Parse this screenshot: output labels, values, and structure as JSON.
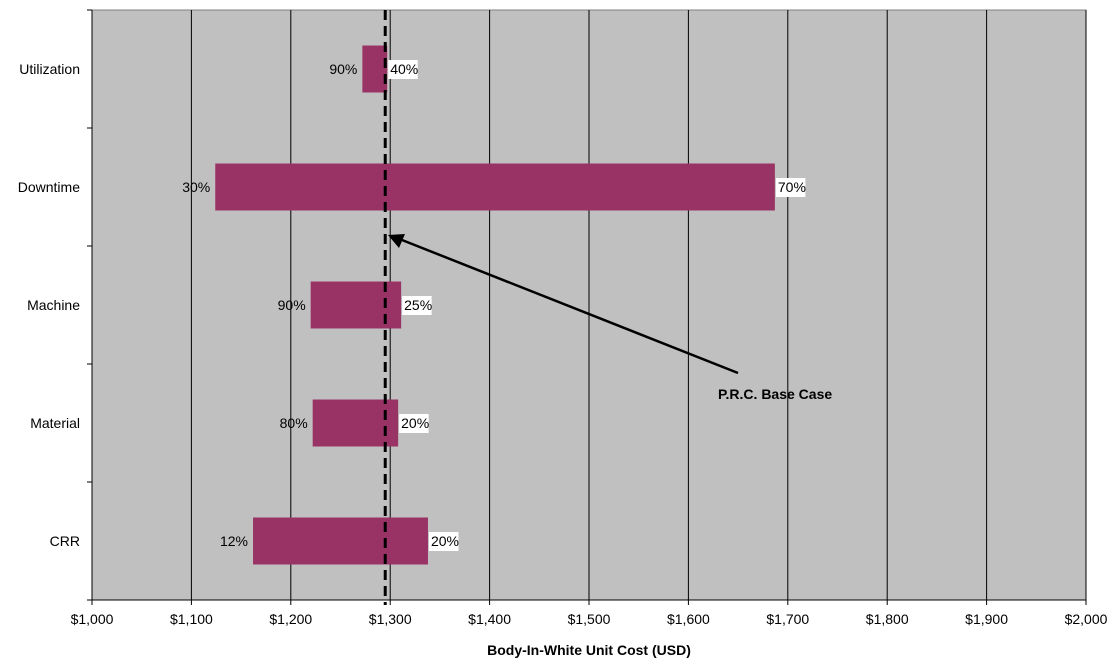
{
  "chart_data": {
    "type": "bar",
    "orientation": "horizontal",
    "subtype": "tornado",
    "title": "",
    "xlabel": "Body-In-White Unit Cost (USD)",
    "ylabel": "",
    "xlim": [
      1000,
      2000
    ],
    "x_ticks": [
      1000,
      1100,
      1200,
      1300,
      1400,
      1500,
      1600,
      1700,
      1800,
      1900,
      2000
    ],
    "x_tick_labels": [
      "$1,000",
      "$1,100",
      "$1,200",
      "$1,300",
      "$1,400",
      "$1,500",
      "$1,600",
      "$1,700",
      "$1,800",
      "$1,900",
      "$2,000"
    ],
    "grid": "vertical",
    "legend": "none",
    "base_case": {
      "value": 1295,
      "label": "P.R.C. Base Case"
    },
    "categories": [
      "Utilization",
      "Downtime",
      "Machine",
      "Material",
      "CRR"
    ],
    "bars": [
      {
        "category": "Utilization",
        "low": 1272,
        "high": 1297,
        "low_label": "90%",
        "high_label": "40%"
      },
      {
        "category": "Downtime",
        "low": 1124,
        "high": 1687,
        "low_label": "30%",
        "high_label": "70%"
      },
      {
        "category": "Machine",
        "low": 1220,
        "high": 1311,
        "low_label": "90%",
        "high_label": "25%"
      },
      {
        "category": "Material",
        "low": 1222,
        "high": 1308,
        "low_label": "80%",
        "high_label": "20%"
      },
      {
        "category": "CRR",
        "low": 1162,
        "high": 1338,
        "low_label": "12%",
        "high_label": "20%"
      }
    ],
    "colors": {
      "plot_background": "#c0c0c0",
      "bar": "#993366",
      "gridline": "#000000",
      "base_line": "#000000"
    }
  }
}
